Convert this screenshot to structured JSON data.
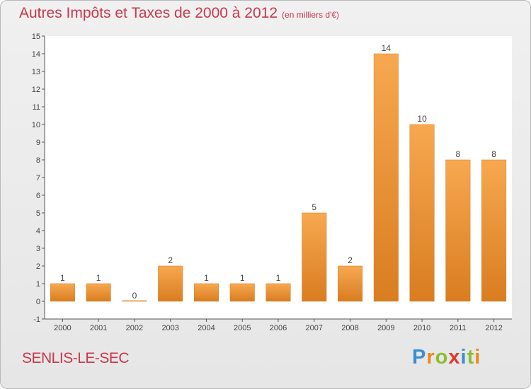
{
  "title": "Autres Impôts et Taxes de 2000 à 2012",
  "subtitle": "(en milliers d'€)",
  "location": "SENLIS-LE-SEC",
  "logo": {
    "text": "Proxiti",
    "letters": [
      {
        "ch": "P",
        "color": "#3a8fd0"
      },
      {
        "ch": "r",
        "color": "#e8891f"
      },
      {
        "ch": "o",
        "color": "#8bbf2e"
      },
      {
        "ch": "x",
        "color": "#e0392b"
      },
      {
        "ch": "i",
        "color": "#3a8fd0"
      },
      {
        "ch": "t",
        "color": "#8bbf2e"
      },
      {
        "ch": "i",
        "color": "#e8891f"
      }
    ]
  },
  "colors": {
    "bar_light": "#f7a850",
    "bar_dark": "#d97d20",
    "title": "#c8384c"
  },
  "chart_data": {
    "type": "bar",
    "title": "Autres Impôts et Taxes de 2000 à 2012",
    "subtitle": "(en milliers d'€)",
    "categories": [
      "2000",
      "2001",
      "2002",
      "2003",
      "2004",
      "2005",
      "2006",
      "2007",
      "2008",
      "2009",
      "2010",
      "2011",
      "2012"
    ],
    "values": [
      1,
      1,
      0,
      2,
      1,
      1,
      1,
      5,
      2,
      14,
      10,
      8,
      8
    ],
    "data_labels": [
      "1",
      "1",
      "0",
      "2",
      "1",
      "1",
      "1",
      "5",
      "2",
      "14",
      "10",
      "8",
      "8"
    ],
    "ylim": [
      -1,
      15
    ],
    "yticks": [
      -1,
      0,
      1,
      2,
      3,
      4,
      5,
      6,
      7,
      8,
      9,
      10,
      11,
      12,
      13,
      14,
      15
    ],
    "grid": false,
    "xlabel": "",
    "ylabel": ""
  }
}
